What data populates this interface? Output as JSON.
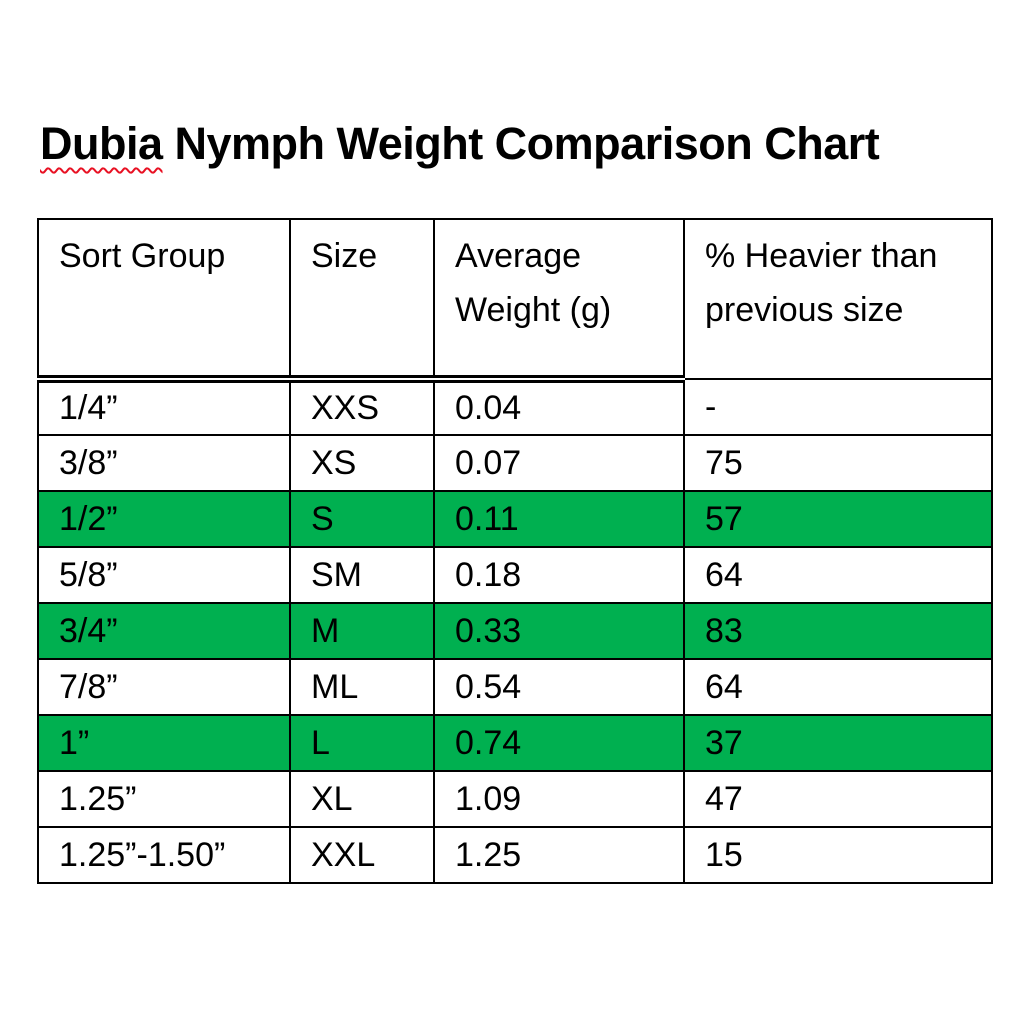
{
  "title": {
    "misspelled_word": "Dubia",
    "rest": " Nymph Weight Comparison Chart",
    "spellcheck_color": "#e81123"
  },
  "table": {
    "highlight_color": "#00B050",
    "headers": [
      "Sort Group",
      "Size",
      "Average Weight (g)",
      "% Heavier than previous size"
    ],
    "rows": [
      {
        "group": "1/4”",
        "size": "XXS",
        "weight": "0.04",
        "pct": "-",
        "highlighted": false
      },
      {
        "group": "3/8”",
        "size": "XS",
        "weight": "0.07",
        "pct": "75",
        "highlighted": false
      },
      {
        "group": "1/2”",
        "size": "S",
        "weight": "0.11",
        "pct": "57",
        "highlighted": true
      },
      {
        "group": "5/8”",
        "size": "SM",
        "weight": "0.18",
        "pct": "64",
        "highlighted": false
      },
      {
        "group": "3/4”",
        "size": "M",
        "weight": "0.33",
        "pct": "83",
        "highlighted": true
      },
      {
        "group": "7/8”",
        "size": "ML",
        "weight": "0.54",
        "pct": "64",
        "highlighted": false
      },
      {
        "group": "1”",
        "size": "L",
        "weight": "0.74",
        "pct": "37",
        "highlighted": true
      },
      {
        "group": "1.25”",
        "size": "XL",
        "weight": "1.09",
        "pct": "47",
        "highlighted": false
      },
      {
        "group": "1.25”-1.50”",
        "size": "XXL",
        "weight": "1.25",
        "pct": "15",
        "highlighted": false
      }
    ]
  },
  "chart_data": {
    "type": "table",
    "title": "Dubia Nymph Weight Comparison Chart",
    "columns": [
      "Sort Group",
      "Size",
      "Average Weight (g)",
      "% Heavier than previous size"
    ],
    "rows": [
      [
        "1/4”",
        "XXS",
        0.04,
        null
      ],
      [
        "3/8”",
        "XS",
        0.07,
        75
      ],
      [
        "1/2”",
        "S",
        0.11,
        57
      ],
      [
        "5/8”",
        "SM",
        0.18,
        64
      ],
      [
        "3/4”",
        "M",
        0.33,
        83
      ],
      [
        "7/8”",
        "ML",
        0.54,
        64
      ],
      [
        "1”",
        "L",
        0.74,
        37
      ],
      [
        "1.25”",
        "XL",
        1.09,
        47
      ],
      [
        "1.25”-1.50”",
        "XXL",
        1.25,
        15
      ],
      [
        "__highlighted_row_indices__",
        2,
        4,
        6
      ]
    ]
  }
}
